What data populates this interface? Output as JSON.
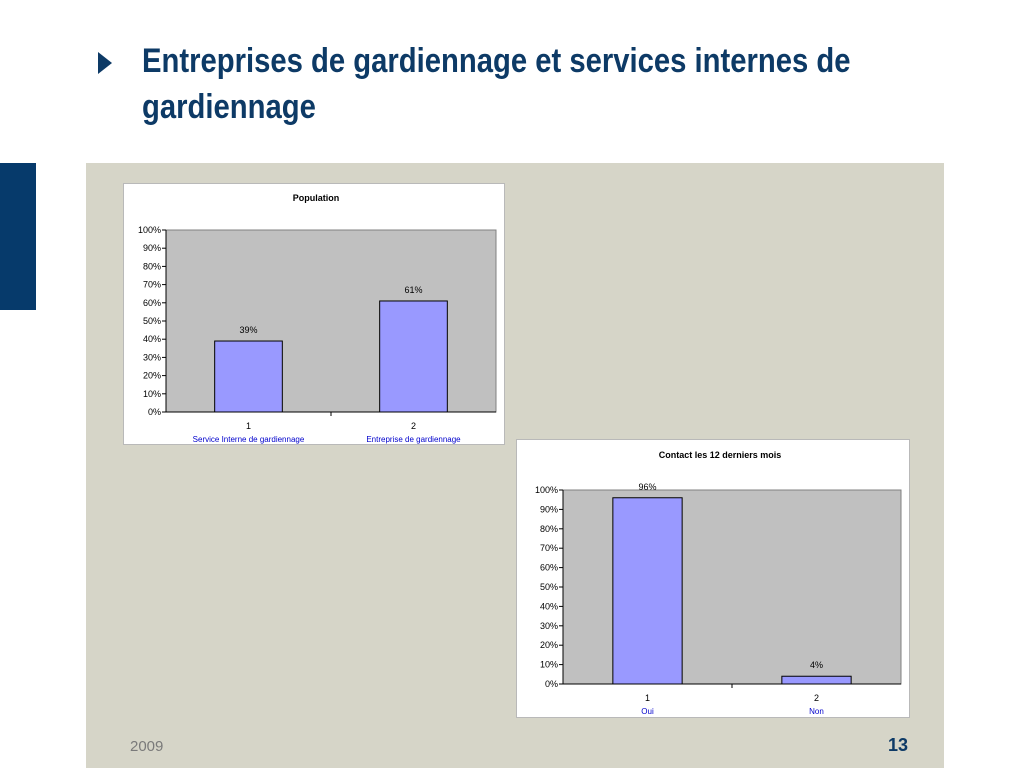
{
  "slide": {
    "title_line1": "Entreprises de gardiennage et services internes de",
    "title_line2": "gardiennage",
    "year": "2009",
    "page_number": "13"
  },
  "colors": {
    "title": "#0d3a66",
    "bar_fill": "#9999ff",
    "plot_bg": "#c0c0c0",
    "category_label": "#0000cc"
  },
  "chart_data": [
    {
      "type": "bar",
      "title": "Population",
      "categories": [
        "1",
        "2"
      ],
      "category_labels": [
        "Service Interne de gardiennage",
        "Entreprise de gardiennage"
      ],
      "values": [
        39,
        61
      ],
      "data_labels": [
        "39%",
        "61%"
      ],
      "yticks": [
        "0%",
        "10%",
        "20%",
        "30%",
        "40%",
        "50%",
        "60%",
        "70%",
        "80%",
        "90%",
        "100%"
      ],
      "ylim": [
        0,
        100
      ],
      "xlabel": "",
      "ylabel": "",
      "grid": false,
      "legend": "none"
    },
    {
      "type": "bar",
      "title": "Contact les 12 derniers mois",
      "categories": [
        "1",
        "2"
      ],
      "category_labels": [
        "Oui",
        "Non"
      ],
      "values": [
        96,
        4
      ],
      "data_labels": [
        "96%",
        "4%"
      ],
      "yticks": [
        "0%",
        "10%",
        "20%",
        "30%",
        "40%",
        "50%",
        "60%",
        "70%",
        "80%",
        "90%",
        "100%"
      ],
      "ylim": [
        0,
        100
      ],
      "xlabel": "",
      "ylabel": "",
      "grid": false,
      "legend": "none"
    }
  ]
}
